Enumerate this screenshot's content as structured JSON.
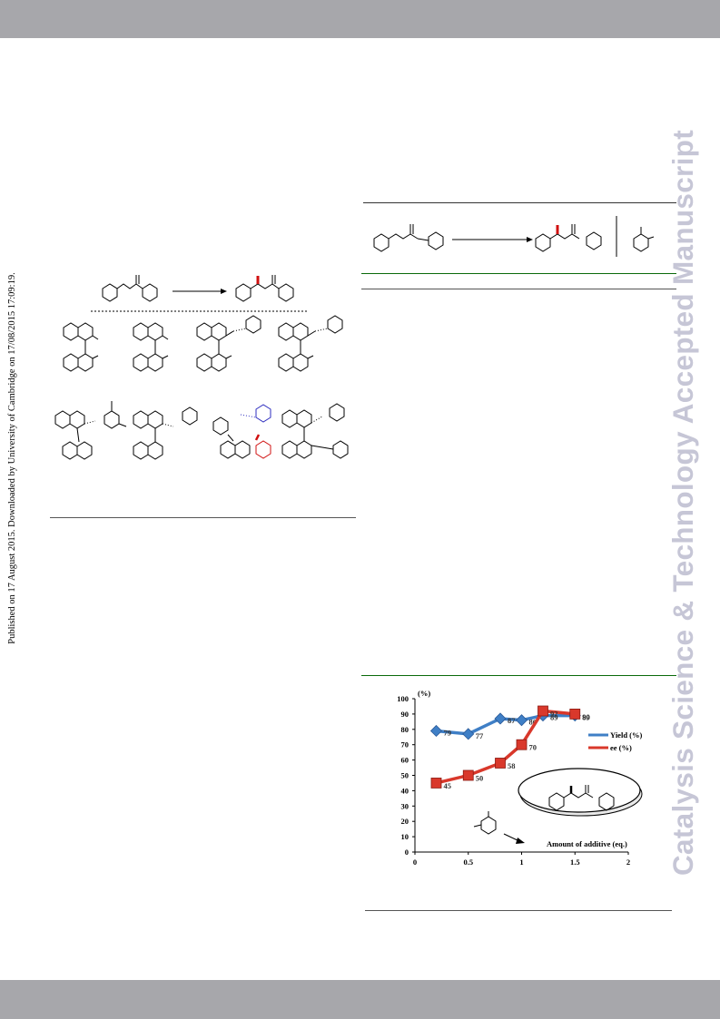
{
  "banner": {
    "color": "#a7a7ab"
  },
  "watermark": {
    "text": "Catalysis Science & Technology Accepted Manuscript",
    "color": "#c6c6d6"
  },
  "side_note": {
    "text": "Published on 17 August 2015. Downloaded by University of Cambridge on 17/08/2015 17:09:19."
  },
  "scheme_right": {
    "rule_color": "#0a6a0a"
  },
  "chart": {
    "rule_color": "#0a6a0a"
  },
  "chart_data": {
    "type": "line",
    "title": "",
    "xlabel": "Amount of additive (eq.)",
    "ylabel": "(%)",
    "xlim": [
      0,
      2
    ],
    "ylim": [
      0,
      100
    ],
    "x_ticks": [
      "0",
      "0.5",
      "1",
      "1.5",
      "2"
    ],
    "y_ticks": [
      "0",
      "10",
      "20",
      "30",
      "40",
      "50",
      "60",
      "70",
      "80",
      "90",
      "100"
    ],
    "legend_position": "right",
    "series": [
      {
        "name": "Yield (%)",
        "color": "#3f7fc6",
        "x": [
          0.2,
          0.5,
          0.8,
          1.0,
          1.2,
          1.5
        ],
        "y": [
          79,
          77,
          87,
          86,
          89,
          89
        ],
        "labels": [
          "79",
          "77",
          "87",
          "86",
          "89",
          "89"
        ]
      },
      {
        "name": "ee (%)",
        "color": "#d9382b",
        "x": [
          0.2,
          0.5,
          0.8,
          1.0,
          1.2,
          1.5
        ],
        "y": [
          45,
          50,
          58,
          70,
          92,
          90
        ],
        "labels": [
          "45",
          "50",
          "58",
          "70",
          "92",
          "90"
        ]
      }
    ]
  }
}
